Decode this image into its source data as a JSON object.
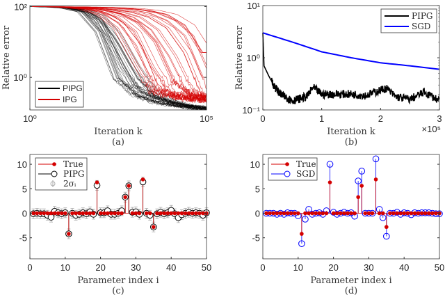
{
  "chart_data": [
    {
      "panel": "(a)",
      "type": "line",
      "xlabel": "Iteration k",
      "ylabel": "Relative error",
      "xscale": "log",
      "yscale": "log",
      "xlim": [
        1,
        100000
      ],
      "ylim": [
        0.12,
        107
      ],
      "xticks": [
        {
          "value": 1,
          "label": "10⁰"
        },
        {
          "value": 100000,
          "label": "10⁵"
        }
      ],
      "yticks": [
        {
          "value": 1,
          "label": "10⁰"
        },
        {
          "value": 100,
          "label": "10²"
        }
      ],
      "legend": "bottom-left",
      "x": [
        1,
        3.16,
        10,
        31.6,
        100,
        316,
        1000,
        3160,
        10000,
        31600,
        100000
      ],
      "series": [
        {
          "name": "PIPG",
          "color": "#000000",
          "runs": [
            [
              100,
              98,
              92,
              72,
              20,
              1,
              0.35,
              0.22,
              0.17,
              0.14,
              0.12
            ],
            [
              100,
              98,
              93,
              78,
              30,
              2,
              0.4,
              0.25,
              0.18,
              0.15,
              0.13
            ],
            [
              100,
              98,
              94,
              80,
              40,
              5,
              0.6,
              0.3,
              0.2,
              0.16,
              0.14
            ],
            [
              100,
              99,
              95,
              85,
              55,
              15,
              2,
              0.4,
              0.22,
              0.16,
              0.14
            ],
            [
              100,
              98,
              92,
              70,
              18,
              0.9,
              0.3,
              0.2,
              0.16,
              0.14,
              0.12
            ],
            [
              100,
              99,
              94,
              82,
              45,
              8,
              1,
              0.3,
              0.2,
              0.15,
              0.13
            ]
          ]
        },
        {
          "name": "IPG",
          "color": "#d40000",
          "runs": [
            [
              100,
              99,
              95,
              85,
              60,
              25,
              3,
              0.4,
              0.3,
              0.25,
              0.22
            ],
            [
              100,
              99,
              96,
              88,
              68,
              35,
              8,
              0.5,
              0.3,
              0.25,
              0.22
            ],
            [
              100,
              99,
              97,
              90,
              75,
              50,
              20,
              2,
              0.35,
              0.3,
              0.25
            ],
            [
              100,
              99,
              97,
              92,
              82,
              62,
              35,
              10,
              0.8,
              0.3,
              0.25
            ],
            [
              100,
              99,
              98,
              93,
              85,
              70,
              50,
              22,
              4,
              0.4,
              0.3
            ],
            [
              100,
              100,
              98,
              95,
              90,
              82,
              70,
              50,
              25,
              5,
              0.3
            ],
            [
              100,
              100,
              99,
              97,
              95,
              90,
              82,
              65,
              40,
              15,
              1
            ],
            [
              100,
              100,
              99,
              98,
              96,
              93,
              88,
              78,
              60,
              30,
              5
            ]
          ]
        }
      ]
    },
    {
      "panel": "(b)",
      "type": "line",
      "xlabel": "Iteration k",
      "ylabel": "Relative error",
      "xscale": "linear",
      "yscale": "log",
      "xlim": [
        0,
        300000
      ],
      "ylim": [
        0.1,
        10
      ],
      "x_multiplier": "×10⁵",
      "xticks": [
        {
          "value": 0,
          "label": "0"
        },
        {
          "value": 100000,
          "label": "1"
        },
        {
          "value": 200000,
          "label": "2"
        },
        {
          "value": 300000,
          "label": "3"
        }
      ],
      "yticks": [
        {
          "value": 0.1,
          "label": "10⁻¹"
        },
        {
          "value": 1,
          "label": "10⁰"
        },
        {
          "value": 10,
          "label": "10¹"
        }
      ],
      "legend": "top-right",
      "series": [
        {
          "name": "PIPG",
          "color": "#000000",
          "x": [
            0,
            2000,
            10000,
            20000,
            30000,
            50000,
            75000,
            85000,
            100000,
            125000,
            150000,
            175000,
            200000,
            210000,
            225000,
            250000,
            275000,
            300000
          ],
          "values": [
            3,
            0.7,
            0.45,
            0.28,
            0.2,
            0.15,
            0.18,
            0.27,
            0.2,
            0.2,
            0.2,
            0.19,
            0.24,
            0.26,
            0.18,
            0.16,
            0.22,
            0.15
          ]
        },
        {
          "name": "SGD",
          "color": "#0000ff",
          "x": [
            0,
            50000,
            100000,
            150000,
            200000,
            250000,
            300000
          ],
          "values": [
            3,
            2.0,
            1.3,
            1.0,
            0.8,
            0.7,
            0.6
          ]
        }
      ]
    },
    {
      "panel": "(c)",
      "type": "scatter",
      "xlabel": "Parameter index i",
      "xlim": [
        0,
        50
      ],
      "ylim": [
        -9.3,
        12
      ],
      "xticks": [
        {
          "value": 0,
          "label": "0"
        },
        {
          "value": 10,
          "label": "10"
        },
        {
          "value": 20,
          "label": "20"
        },
        {
          "value": 30,
          "label": "30"
        },
        {
          "value": 40,
          "label": "40"
        },
        {
          "value": 50,
          "label": "50"
        }
      ],
      "yticks": [
        {
          "value": -5,
          "label": "-5"
        },
        {
          "value": 0,
          "label": "0"
        },
        {
          "value": 5,
          "label": "5"
        },
        {
          "value": 10,
          "label": "10"
        }
      ],
      "legend": "top-left",
      "legend_labels": {
        "true": "True",
        "est": "PIPG",
        "err": "2σᵢ"
      },
      "true": [
        0,
        0,
        0,
        0,
        0,
        0,
        0,
        0,
        0,
        0,
        -4.2,
        0,
        0,
        0,
        0,
        0,
        0,
        0,
        6.3,
        0,
        0,
        0,
        0,
        0,
        0,
        0,
        3.3,
        5.6,
        0,
        0,
        0,
        6.9,
        0,
        0,
        -2.8,
        0,
        0,
        0,
        0,
        0,
        0,
        0,
        0,
        0,
        0,
        0,
        0,
        0,
        0,
        0
      ],
      "estimate": [
        -0.1,
        0,
        -0.1,
        -0.1,
        -0.4,
        -0.8,
        0.4,
        0.1,
        -0.1,
        0.1,
        -4.2,
        0,
        -0.4,
        -0.2,
        0.1,
        -0.1,
        0.3,
        -0.2,
        5.7,
        0.1,
        0.1,
        0.5,
        -0.2,
        -0.2,
        0,
        0.5,
        3.3,
        5.6,
        0.2,
        0.3,
        -0.2,
        6.4,
        0,
        -0.4,
        -2.8,
        -0.1,
        0.2,
        -0.1,
        0.1,
        0.6,
        -0.1,
        -0.9,
        -0.3,
        0,
        0.2,
        0,
        0.1,
        0,
        -0.4,
        0.1
      ],
      "sigma": 0.5,
      "colors": {
        "true": "#d40000",
        "est": "#000000",
        "err": "#aaaaaa"
      }
    },
    {
      "panel": "(d)",
      "type": "scatter",
      "xlabel": "Parameter index i",
      "xlim": [
        0,
        50
      ],
      "ylim": [
        -9.3,
        12
      ],
      "xticks": [
        {
          "value": 0,
          "label": "0"
        },
        {
          "value": 10,
          "label": "10"
        },
        {
          "value": 20,
          "label": "20"
        },
        {
          "value": 30,
          "label": "30"
        },
        {
          "value": 40,
          "label": "40"
        },
        {
          "value": 50,
          "label": "50"
        }
      ],
      "yticks": [
        {
          "value": -5,
          "label": "-5"
        },
        {
          "value": 0,
          "label": "0"
        },
        {
          "value": 5,
          "label": "5"
        },
        {
          "value": 10,
          "label": "10"
        }
      ],
      "legend": "top-left",
      "legend_labels": {
        "true": "True",
        "est": "SGD"
      },
      "true": [
        0,
        0,
        0,
        0,
        0,
        0,
        0,
        0,
        0,
        0,
        -4.2,
        0,
        0,
        0,
        0,
        0,
        0,
        0,
        6.3,
        0,
        0,
        0,
        0,
        0,
        0,
        0,
        3.3,
        5.6,
        0,
        0,
        0,
        6.9,
        0,
        0,
        -2.8,
        0,
        0,
        0,
        0,
        0,
        0,
        0,
        0,
        0,
        0,
        0,
        0,
        0,
        0,
        0
      ],
      "estimate": [
        0,
        0,
        0,
        -0.2,
        0,
        -0.2,
        0.1,
        0,
        0,
        -0.5,
        -6.2,
        -1.2,
        0.8,
        -0.2,
        0,
        0.1,
        -0.2,
        0.5,
        10.0,
        0.2,
        -0.2,
        0,
        0.2,
        0,
        0.1,
        -0.6,
        6.6,
        8.6,
        0,
        0,
        0,
        11.1,
        0.8,
        -0.9,
        -4.7,
        0,
        0,
        0.2,
        -0.2,
        0.1,
        0,
        -0.3,
        0.1,
        0,
        0.1,
        0.1,
        0.1,
        0,
        -0.1,
        -0.1
      ],
      "colors": {
        "true": "#d40000",
        "est": "#0000ff"
      }
    }
  ]
}
